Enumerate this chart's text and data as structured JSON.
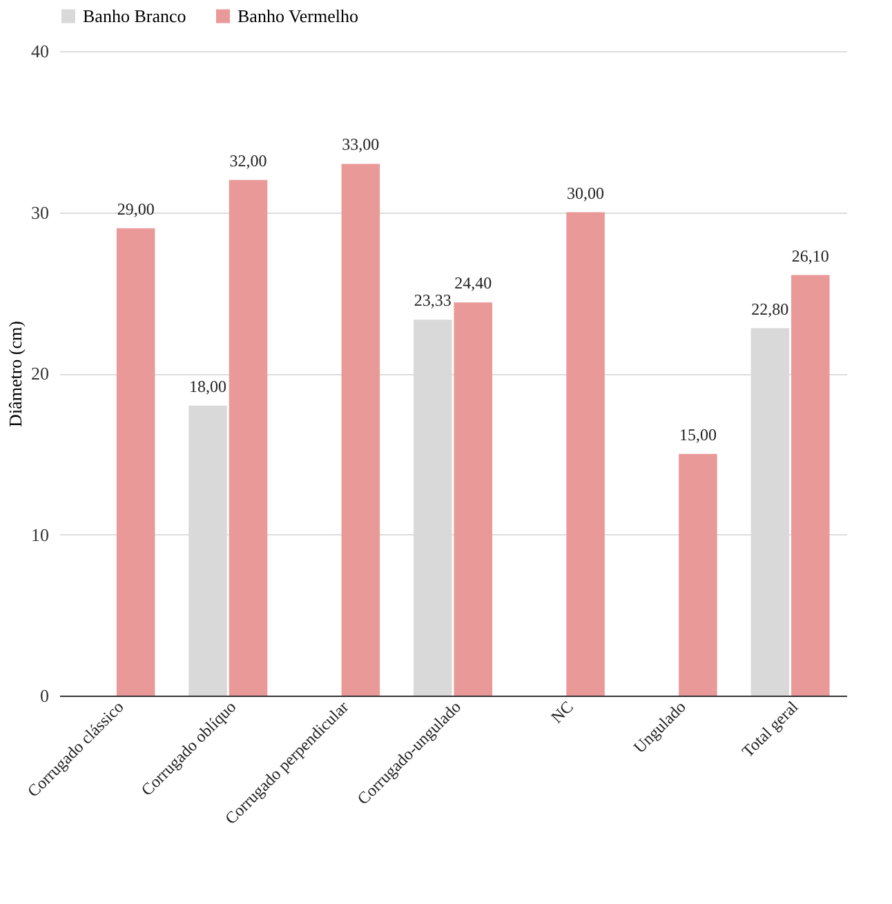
{
  "chart_data": {
    "type": "bar",
    "ylabel": "Diâmetro (cm)",
    "categories": [
      "Corrugado clássico",
      "Corrugado oblíquo",
      "Corrugado perpendicular",
      "Corrugado-ungulado",
      "NC",
      "Ungulado",
      "Total geral"
    ],
    "series": [
      {
        "name": "Banho Branco",
        "color": "#d9d9d9",
        "values": [
          null,
          18,
          null,
          23.33,
          null,
          null,
          22.8
        ],
        "value_labels": [
          null,
          "18,00",
          null,
          "23,33",
          null,
          null,
          "22,80"
        ]
      },
      {
        "name": "Banho Vermelho",
        "color": "#ea9999",
        "values": [
          29,
          32,
          33,
          24.4,
          30,
          15,
          26.1
        ],
        "value_labels": [
          "29,00",
          "32,00",
          "33,00",
          "24,40",
          "30,00",
          "15,00",
          "26,10"
        ]
      }
    ],
    "ylim": [
      0,
      40
    ],
    "yticks": [
      0,
      10,
      20,
      30,
      40
    ],
    "grid": "y",
    "legend": "top"
  }
}
